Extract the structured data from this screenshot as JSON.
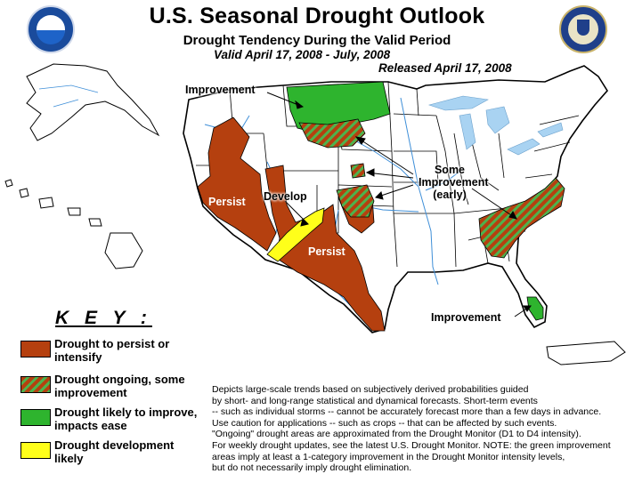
{
  "header": {
    "title": "U.S. Seasonal Drought Outlook",
    "subtitle": "Drought Tendency During the Valid Period",
    "valid": "Valid April 17, 2008 - July, 2008",
    "released": "Released April 17, 2008",
    "left_logo": "noaa-seal-icon",
    "right_logo": "department-of-commerce-seal-icon"
  },
  "map_labels": {
    "improvement_north": "Improvement",
    "some_improvement": [
      "Some",
      "Improvement",
      "(early)"
    ],
    "persist_west": "Persist",
    "develop": "Develop",
    "persist_south": "Persist",
    "improvement_florida": "Improvement"
  },
  "key": {
    "title": "K E Y :",
    "items": [
      {
        "label_1": "Drought to persist or",
        "label_2": "intensify",
        "color": "#b5400f"
      },
      {
        "label_1": "Drought ongoing, some",
        "label_2": "improvement",
        "color": "#b5400f",
        "stripe_color": "#4db34d"
      },
      {
        "label_1": "Drought likely to improve,",
        "label_2": "impacts ease",
        "color": "#2eb42e"
      },
      {
        "label_1": "Drought development",
        "label_2": "likely",
        "color": "#ffff1a"
      }
    ]
  },
  "description": [
    "Depicts large-scale trends based on subjectively derived probabilities guided",
    "by short- and long-range statistical and dynamical forecasts. Short-term events",
    "-- such as individual storms -- cannot be accurately forecast more than a few days in advance.",
    "Use caution for applications -- such as crops -- that can be affected by such events.",
    "\"Ongoing\" drought areas are approximated from the Drought Monitor (D1 to D4 intensity).",
    "For weekly drought updates, see the latest U.S. Drought Monitor. NOTE: the green improvement",
    "areas imply at least a 1-category improvement in the Drought Monitor intensity levels,",
    "but do not necessarily imply drought elimination."
  ],
  "colors": {
    "persist": "#b5400f",
    "improve": "#2eb42e",
    "develop": "#ffff1a",
    "water": "#a9d3f2",
    "border": "#000000"
  }
}
